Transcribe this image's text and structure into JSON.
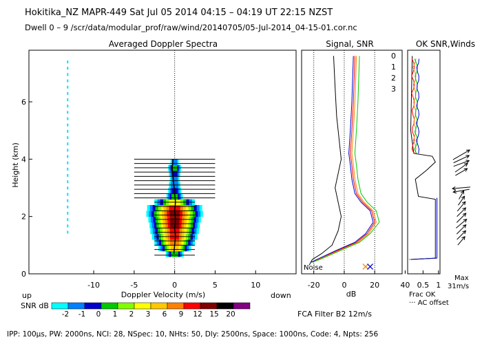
{
  "header": {
    "title": "Hokitika_NZ   MAPR-449   Sat Jul 05 2014 04:15 – 04:19 UT 22:15 NZST",
    "subtitle": "Dwell   0  –   9    /scr/data/modular_prof/raw/wind/20140705/05-Jul-2014_04-15-01.cor.nc"
  },
  "footer": {
    "params": "IPP: 100µs,  PW: 2000ns,  NCI:  28,  NSpec: 10, NHts: 50,  Dly: 2500ns,  Space: 1000ns,  Code: 4,  Npts: 256"
  },
  "chart_data": [
    {
      "type": "heatmap",
      "title": "Averaged Doppler Spectra",
      "xlabel": "Doppler Velocity (m/s)",
      "ylabel": "Height (km)",
      "xlim": [
        -18,
        15
      ],
      "ylim": [
        0,
        7.8
      ],
      "x_ticks": [
        "-10",
        "-5",
        "0",
        "5",
        "10"
      ],
      "x_tick_values": [
        -10,
        -5,
        0,
        5,
        10
      ],
      "y_ticks": [
        "0",
        "2",
        "4",
        "6"
      ],
      "y_tick_values": [
        0,
        2,
        4,
        6
      ],
      "left_corner_label": "up",
      "right_corner_label": "down",
      "colorbar_label": "SNR dB",
      "colorbar_ticks": [
        "-2",
        "-1",
        "0",
        "1",
        "2",
        "3",
        "6",
        "9",
        "12",
        "15",
        "20"
      ],
      "colorbar_colors": [
        "#00ffff",
        "#0080ff",
        "#0000cc",
        "#00c800",
        "#80ff00",
        "#ffff00",
        "#ffc800",
        "#ff8000",
        "#ff0000",
        "#800000",
        "#000000",
        "#800080"
      ],
      "spectra_profile": [
        {
          "h": 0.7,
          "width": 2.2,
          "peak": 3
        },
        {
          "h": 0.9,
          "width": 4.0,
          "peak": 6
        },
        {
          "h": 1.1,
          "width": 5.0,
          "peak": 7
        },
        {
          "h": 1.3,
          "width": 5.6,
          "peak": 8
        },
        {
          "h": 1.5,
          "width": 6.0,
          "peak": 8
        },
        {
          "h": 1.7,
          "width": 6.2,
          "peak": 9
        },
        {
          "h": 1.9,
          "width": 6.5,
          "peak": 9
        },
        {
          "h": 2.1,
          "width": 7.0,
          "peak": 9
        },
        {
          "h": 2.3,
          "width": 6.8,
          "peak": 8
        },
        {
          "h": 2.5,
          "width": 5.0,
          "peak": 5
        },
        {
          "h": 2.7,
          "width": 2.0,
          "peak": 3
        },
        {
          "h": 2.9,
          "width": 1.6,
          "peak": 2
        },
        {
          "h": 3.1,
          "width": 1.4,
          "peak": 1
        },
        {
          "h": 3.3,
          "width": 1.2,
          "peak": 1
        },
        {
          "h": 3.5,
          "width": 1.4,
          "peak": 2
        },
        {
          "h": 3.7,
          "width": 1.6,
          "peak": 3
        },
        {
          "h": 3.9,
          "width": 1.0,
          "peak": 1
        }
      ],
      "mean_velocity": [
        {
          "h": 0.7,
          "v": -0.1
        },
        {
          "h": 1.0,
          "v": 0.0
        },
        {
          "h": 1.3,
          "v": 0.1
        },
        {
          "h": 1.6,
          "v": 0.0
        },
        {
          "h": 1.9,
          "v": 0.1
        },
        {
          "h": 2.2,
          "v": 0.0
        },
        {
          "h": 2.5,
          "v": 0.1
        },
        {
          "h": 2.8,
          "v": 0.0
        },
        {
          "h": 3.1,
          "v": -0.1
        },
        {
          "h": 3.4,
          "v": -0.2
        },
        {
          "h": 3.7,
          "v": -0.3
        },
        {
          "h": 4.0,
          "v": -0.2
        }
      ],
      "bar_heights": [
        0.65,
        0.85,
        1.0,
        1.15,
        1.3,
        1.45,
        1.6,
        1.75,
        1.9,
        2.05,
        2.2,
        2.35,
        2.5,
        2.65,
        2.8,
        2.95,
        3.1,
        3.25,
        3.4,
        3.55,
        3.7,
        3.85,
        4.0
      ]
    },
    {
      "type": "line",
      "title": "Signal, SNR",
      "xlabel": "dB",
      "xlim": [
        -28,
        38
      ],
      "x_ticks": [
        "-20",
        "0",
        "20",
        "40"
      ],
      "x_tick_values": [
        -20,
        0,
        20,
        40
      ],
      "noise_label": "Noise",
      "series": [
        {
          "name": "noise",
          "color": "#000000",
          "points": [
            [
              -23,
              0.3
            ],
            [
              -21,
              0.5
            ],
            [
              -15,
              0.7
            ],
            [
              -8,
              1.0
            ],
            [
              -4,
              1.5
            ],
            [
              -2,
              2.0
            ],
            [
              -4,
              2.5
            ],
            [
              -6,
              3.0
            ],
            [
              -4,
              3.5
            ],
            [
              -2,
              4.0
            ],
            [
              -3,
              4.5
            ],
            [
              -5,
              5.5
            ],
            [
              -6,
              6.5
            ],
            [
              -7,
              7.6
            ]
          ]
        },
        {
          "name": "signal0",
          "color": "#ff0000",
          "points": [
            [
              -22,
              0.4
            ],
            [
              -18,
              0.5
            ],
            [
              -5,
              0.8
            ],
            [
              8,
              1.1
            ],
            [
              15,
              1.4
            ],
            [
              20,
              1.8
            ],
            [
              18,
              2.2
            ],
            [
              12,
              2.5
            ],
            [
              8,
              2.8
            ],
            [
              6,
              3.3
            ],
            [
              5,
              3.8
            ],
            [
              4,
              4.2
            ],
            [
              5,
              5.0
            ],
            [
              6,
              6.0
            ],
            [
              7,
              7.6
            ]
          ]
        },
        {
          "name": "signal1",
          "color": "#ff8000",
          "points": [
            [
              -22,
              0.4
            ],
            [
              -17,
              0.5
            ],
            [
              -4,
              0.8
            ],
            [
              9,
              1.1
            ],
            [
              16,
              1.4
            ],
            [
              21,
              1.8
            ],
            [
              19,
              2.2
            ],
            [
              13,
              2.5
            ],
            [
              9,
              2.8
            ],
            [
              7,
              3.3
            ],
            [
              6,
              3.8
            ],
            [
              5,
              4.2
            ],
            [
              6,
              5.0
            ],
            [
              7,
              6.0
            ],
            [
              8,
              7.6
            ]
          ]
        },
        {
          "name": "signal2",
          "color": "#00c800",
          "points": [
            [
              -21,
              0.4
            ],
            [
              -16,
              0.5
            ],
            [
              -3,
              0.8
            ],
            [
              10,
              1.1
            ],
            [
              17,
              1.4
            ],
            [
              23,
              1.8
            ],
            [
              21,
              2.2
            ],
            [
              15,
              2.5
            ],
            [
              11,
              2.8
            ],
            [
              9,
              3.3
            ],
            [
              8,
              3.8
            ],
            [
              7,
              4.2
            ],
            [
              8,
              5.0
            ],
            [
              9,
              6.0
            ],
            [
              10,
              7.6
            ]
          ]
        },
        {
          "name": "signal3",
          "color": "#0000cc",
          "points": [
            [
              -22,
              0.4
            ],
            [
              -18,
              0.5
            ],
            [
              -6,
              0.8
            ],
            [
              7,
              1.1
            ],
            [
              14,
              1.4
            ],
            [
              19,
              1.8
            ],
            [
              17,
              2.2
            ],
            [
              11,
              2.5
            ],
            [
              7,
              2.8
            ],
            [
              5,
              3.3
            ],
            [
              4,
              3.8
            ],
            [
              3,
              4.2
            ],
            [
              4,
              5.0
            ],
            [
              5,
              6.0
            ],
            [
              6,
              7.6
            ]
          ]
        }
      ],
      "markers": [
        {
          "x": 14,
          "h": 0.25,
          "color": "#ff8000"
        },
        {
          "x": 17,
          "h": 0.25,
          "color": "#0000cc"
        }
      ]
    },
    {
      "type": "line",
      "title": "OK SNR,Winds",
      "beam_labels": [
        {
          "text": "0",
          "color": "#ff0000"
        },
        {
          "text": "1",
          "color": "#ff8000"
        },
        {
          "text": "2",
          "color": "#00c800"
        },
        {
          "text": "3",
          "color": "#0000cc"
        }
      ],
      "xlim": [
        0,
        1.05
      ],
      "x_ticks": [
        "0.5",
        "1"
      ],
      "x_tick_values": [
        0.5,
        1
      ],
      "legend_lines": [
        "Frac OK",
        "··· AC offset"
      ],
      "max_label": "Max",
      "max_value": "31m/s",
      "frac_ok": [
        [
          0.15,
          0.5
        ],
        [
          0.9,
          0.55
        ],
        [
          0.9,
          2.6
        ],
        [
          0.35,
          2.7
        ],
        [
          0.3,
          3.0
        ],
        [
          0.25,
          3.3
        ],
        [
          0.6,
          3.6
        ],
        [
          0.9,
          3.9
        ],
        [
          0.8,
          4.1
        ],
        [
          0.2,
          4.2
        ],
        [
          0.1,
          5.0
        ],
        [
          0.15,
          7.6
        ]
      ],
      "wind_barbs": [
        {
          "h": 4.15,
          "dir": -30,
          "len": 28
        },
        {
          "h": 4.0,
          "dir": -25,
          "len": 25
        },
        {
          "h": 3.85,
          "dir": -20,
          "len": 24
        },
        {
          "h": 3.7,
          "dir": -35,
          "len": 22
        },
        {
          "h": 3.55,
          "dir": -30,
          "len": 20
        },
        {
          "h": 3.0,
          "dir": 175,
          "len": 26
        },
        {
          "h": 2.9,
          "dir": 170,
          "len": 24
        },
        {
          "h": 2.75,
          "dir": -60,
          "len": 14
        },
        {
          "h": 2.55,
          "dir": -55,
          "len": 16
        },
        {
          "h": 2.35,
          "dir": -50,
          "len": 18
        },
        {
          "h": 2.15,
          "dir": -45,
          "len": 18
        },
        {
          "h": 1.95,
          "dir": -45,
          "len": 19
        },
        {
          "h": 1.75,
          "dir": -40,
          "len": 20
        },
        {
          "h": 1.55,
          "dir": -45,
          "len": 19
        },
        {
          "h": 1.35,
          "dir": -45,
          "len": 18
        },
        {
          "h": 1.15,
          "dir": -50,
          "len": 16
        }
      ]
    }
  ],
  "bottom_labels": {
    "fca": "FCA Filter B2 12m/s"
  }
}
